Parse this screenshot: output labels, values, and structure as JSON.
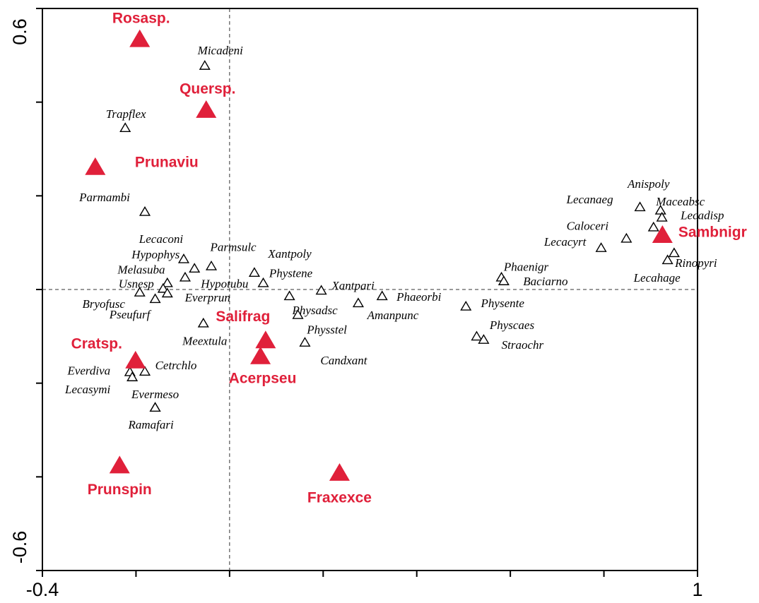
{
  "chart_data": {
    "type": "scatter",
    "xlim": [
      -0.4,
      1.0
    ],
    "ylim": [
      -0.6,
      0.6
    ],
    "xticks": [
      -0.4,
      1.0
    ],
    "yticks": [
      -0.6,
      0.6
    ],
    "minor_xticks": [
      -0.2,
      0,
      0.2,
      0.4,
      0.6,
      0.8
    ],
    "minor_yticks": [
      -0.4,
      -0.2,
      0,
      0.2,
      0.4
    ],
    "zero_lines": true,
    "series": [
      {
        "marker": "open-triangle",
        "color": "#000000",
        "labels": [
          "Micadeni",
          "Trapflex",
          "Parmambi",
          "Lecaconi",
          "Hypophys",
          "Parmsulc",
          "Melasuba",
          "Usnesp",
          "Hypotubu",
          "Bryofusc",
          "Everprun",
          "Pseufurf",
          "Meextula",
          "Xantpoly",
          "Phystene",
          "Physadsc",
          "Xantpari",
          "Physstel",
          "Candxant",
          "Amanpunc",
          "Phaeorbi",
          "Cetrchlo",
          "Everdiva",
          "Lecasymi",
          "Evermeso",
          "Ramafari",
          "Physente",
          "Physcaes",
          "Straochr",
          "Phaenigr",
          "Baciarno",
          "Lecacyrt",
          "Caloceri",
          "Lecanaeg",
          "Anispoly",
          "Maceabsc",
          "Lecadisp",
          "Rinopyri",
          "Lecahage"
        ],
        "x": [
          -0.053,
          -0.223,
          -0.181,
          -0.098,
          -0.075,
          -0.039,
          -0.095,
          -0.133,
          -0.142,
          -0.192,
          -0.133,
          -0.159,
          -0.056,
          0.053,
          0.072,
          0.128,
          0.196,
          0.146,
          0.161,
          0.275,
          0.326,
          -0.181,
          -0.213,
          -0.208,
          -0.159,
          -0.159,
          0.505,
          0.528,
          0.543,
          0.581,
          0.586,
          0.794,
          0.848,
          0.877,
          0.921,
          0.924,
          0.906,
          0.95,
          0.936
        ],
        "y": [
          0.478,
          0.345,
          0.166,
          0.065,
          0.045,
          0.05,
          0.026,
          0.014,
          0.002,
          -0.006,
          -0.008,
          -0.02,
          -0.072,
          0.036,
          0.014,
          -0.014,
          -0.002,
          -0.054,
          -0.113,
          -0.029,
          -0.014,
          -0.175,
          -0.176,
          -0.187,
          -0.252,
          -0.252,
          -0.036,
          -0.1,
          -0.107,
          0.026,
          0.018,
          0.089,
          0.109,
          0.176,
          0.169,
          0.154,
          0.133,
          0.078,
          0.063
        ]
      },
      {
        "marker": "filled-triangle",
        "color": "#e0203a",
        "labels": [
          "Rosasp.",
          "Quersp.",
          "Prunaviu",
          "Sambnigr",
          "Salifrag",
          "Acerpseu",
          "Cratsp.",
          "Prunspin",
          "Fraxexce"
        ],
        "x": [
          -0.192,
          -0.05,
          -0.287,
          0.925,
          0.077,
          0.066,
          -0.201,
          -0.235,
          0.235
        ],
        "y": [
          0.534,
          0.383,
          0.261,
          0.116,
          -0.109,
          -0.143,
          -0.152,
          -0.376,
          -0.392
        ]
      }
    ]
  }
}
